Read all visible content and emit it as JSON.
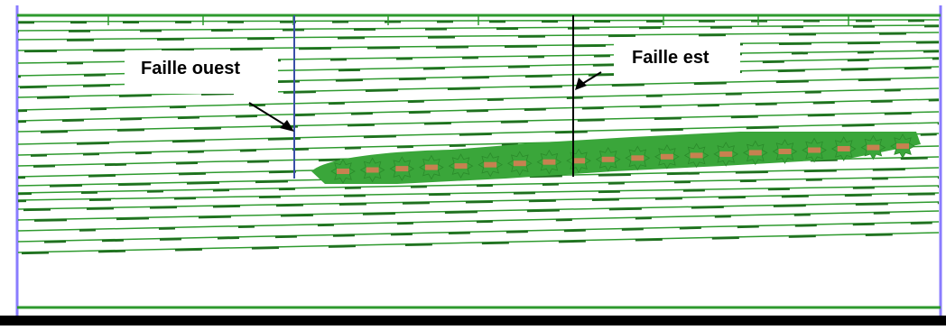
{
  "labels": {
    "west_fault": "Faille ouest",
    "east_fault": "Faille est"
  },
  "colors": {
    "horizon_line": "#2e9a2e",
    "horizon_dash": "#1f6f1f",
    "reservoir_fill": "#3aa63a",
    "reservoir_cell": "#e07a55",
    "west_fault": "#3a4fa8",
    "east_fault": "#000000",
    "frame_side": "#8a7cff",
    "bottom_bar": "#000000"
  },
  "icons": [
    "arrow-west-fault",
    "arrow-east-fault"
  ]
}
